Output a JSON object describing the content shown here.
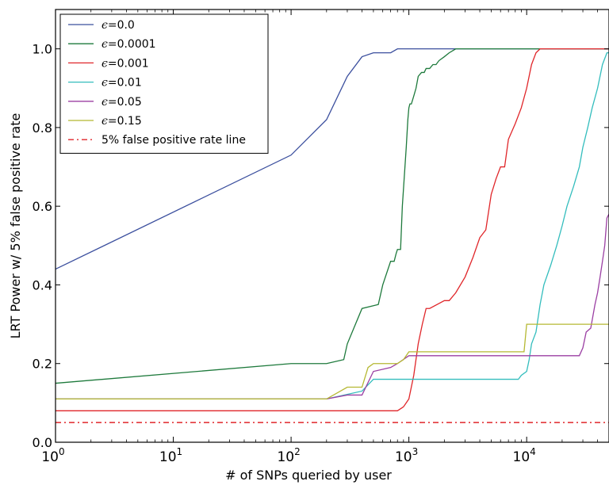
{
  "chart_data": {
    "type": "line",
    "xlabel": "# of SNPs queried by user",
    "ylabel": "LRT Power w/ 5% false positive rate",
    "xscale": "log",
    "xlim": [
      1,
      50000
    ],
    "ylim": [
      0,
      1.1
    ],
    "x_ticks": [
      {
        "value": 1,
        "base": "10",
        "exp": "0"
      },
      {
        "value": 10,
        "base": "10",
        "exp": "1"
      },
      {
        "value": 100,
        "base": "10",
        "exp": "2"
      },
      {
        "value": 1000,
        "base": "10",
        "exp": "3"
      },
      {
        "value": 10000,
        "base": "10",
        "exp": "4"
      }
    ],
    "y_ticks": [
      {
        "value": 0.0,
        "label": "0.0"
      },
      {
        "value": 0.2,
        "label": "0.2"
      },
      {
        "value": 0.4,
        "label": "0.4"
      },
      {
        "value": 0.6,
        "label": "0.6"
      },
      {
        "value": 0.8,
        "label": "0.8"
      },
      {
        "value": 1.0,
        "label": "1.0"
      }
    ],
    "grid": false,
    "legend_position": "top-left",
    "series": [
      {
        "name": "ϵ=0.0",
        "symbol": "ϵ",
        "value_text": "=0.0",
        "color": "#3b4f9e",
        "style": "solid",
        "x": [
          1,
          100,
          200,
          300,
          400,
          500,
          700,
          800,
          1000,
          50000
        ],
        "y": [
          0.44,
          0.73,
          0.82,
          0.93,
          0.98,
          0.99,
          0.99,
          1.0,
          1.0,
          1.0
        ]
      },
      {
        "name": "ϵ=0.0001",
        "symbol": "ϵ",
        "value_text": "=0.0001",
        "color": "#1e7a3c",
        "style": "solid",
        "x": [
          1,
          100,
          200,
          280,
          300,
          400,
          550,
          600,
          700,
          750,
          780,
          800,
          820,
          850,
          880,
          950,
          980,
          1000,
          1020,
          1050,
          1100,
          1150,
          1200,
          1280,
          1300,
          1350,
          1400,
          1500,
          1600,
          1700,
          1800,
          2000,
          2200,
          2500,
          2700,
          3000,
          50000
        ],
        "y": [
          0.15,
          0.2,
          0.2,
          0.21,
          0.25,
          0.34,
          0.35,
          0.4,
          0.46,
          0.46,
          0.48,
          0.49,
          0.49,
          0.49,
          0.6,
          0.75,
          0.82,
          0.85,
          0.86,
          0.86,
          0.88,
          0.9,
          0.93,
          0.94,
          0.94,
          0.94,
          0.95,
          0.95,
          0.96,
          0.96,
          0.97,
          0.98,
          0.99,
          1.0,
          1.0,
          1.0,
          1.0
        ]
      },
      {
        "name": "ϵ=0.001",
        "symbol": "ϵ",
        "value_text": "=0.001",
        "color": "#e0262a",
        "style": "solid",
        "x": [
          1,
          800,
          900,
          1000,
          1100,
          1200,
          1300,
          1400,
          1500,
          2000,
          2200,
          2500,
          3000,
          3500,
          4000,
          4500,
          5000,
          5500,
          6000,
          6500,
          7000,
          8000,
          9000,
          10000,
          11000,
          12000,
          13000,
          50000
        ],
        "y": [
          0.08,
          0.08,
          0.09,
          0.11,
          0.17,
          0.25,
          0.3,
          0.34,
          0.34,
          0.36,
          0.36,
          0.38,
          0.42,
          0.47,
          0.52,
          0.54,
          0.63,
          0.67,
          0.7,
          0.7,
          0.77,
          0.81,
          0.85,
          0.9,
          0.96,
          0.99,
          1.0,
          1.0
        ]
      },
      {
        "name": "ϵ=0.01",
        "symbol": "ϵ",
        "value_text": "=0.01",
        "color": "#33bdbd",
        "style": "solid",
        "x": [
          1,
          200,
          400,
          500,
          8500,
          9000,
          10000,
          10500,
          11000,
          12000,
          13000,
          14000,
          16000,
          18000,
          20000,
          22000,
          25000,
          28000,
          30000,
          33000,
          36000,
          40000,
          44000,
          48000,
          50000
        ],
        "y": [
          0.11,
          0.11,
          0.13,
          0.16,
          0.16,
          0.17,
          0.18,
          0.21,
          0.25,
          0.28,
          0.35,
          0.4,
          0.45,
          0.5,
          0.55,
          0.6,
          0.65,
          0.7,
          0.75,
          0.8,
          0.85,
          0.9,
          0.96,
          0.99,
          0.99
        ]
      },
      {
        "name": "ϵ=0.05",
        "symbol": "ϵ",
        "value_text": "=0.05",
        "color": "#9b3fa3",
        "style": "solid",
        "x": [
          1,
          200,
          300,
          400,
          500,
          700,
          800,
          1000,
          28000,
          30000,
          32000,
          35000,
          38000,
          40000,
          42000,
          44000,
          46000,
          48000,
          50000
        ],
        "y": [
          0.11,
          0.11,
          0.12,
          0.12,
          0.18,
          0.19,
          0.2,
          0.22,
          0.22,
          0.24,
          0.28,
          0.29,
          0.35,
          0.38,
          0.42,
          0.46,
          0.5,
          0.57,
          0.58
        ]
      },
      {
        "name": "ϵ=0.15",
        "symbol": "ϵ",
        "value_text": "=0.15",
        "color": "#b5b832",
        "style": "solid",
        "x": [
          1,
          200,
          300,
          400,
          450,
          500,
          800,
          900,
          1000,
          9500,
          10000,
          50000
        ],
        "y": [
          0.11,
          0.11,
          0.14,
          0.14,
          0.19,
          0.2,
          0.2,
          0.21,
          0.23,
          0.23,
          0.3,
          0.3
        ]
      },
      {
        "name": "5% false positive rate line",
        "color": "#e0262a",
        "style": "dashdot",
        "x": [
          1,
          50000
        ],
        "y": [
          0.05,
          0.05
        ]
      }
    ]
  }
}
